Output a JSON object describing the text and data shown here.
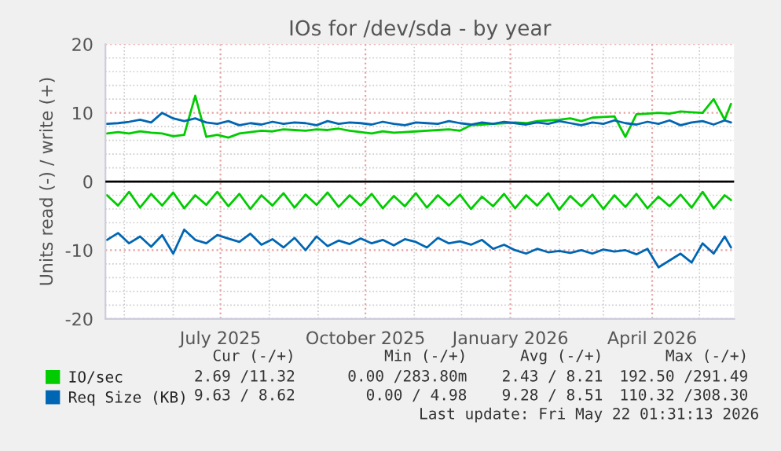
{
  "chart_data": {
    "type": "line",
    "title": "IOs for /dev/sda - by year",
    "ylabel": "Units read (-) / write (+)",
    "x": [
      "2025-04-20",
      "2025-04-27",
      "2025-05-04",
      "2025-05-11",
      "2025-05-18",
      "2025-05-25",
      "2025-06-01",
      "2025-06-08",
      "2025-06-15",
      "2025-06-22",
      "2025-06-29",
      "2025-07-06",
      "2025-07-13",
      "2025-07-20",
      "2025-07-27",
      "2025-08-03",
      "2025-08-10",
      "2025-08-17",
      "2025-08-24",
      "2025-08-31",
      "2025-09-07",
      "2025-09-14",
      "2025-09-21",
      "2025-09-28",
      "2025-10-05",
      "2025-10-12",
      "2025-10-19",
      "2025-10-26",
      "2025-11-02",
      "2025-11-09",
      "2025-11-16",
      "2025-11-23",
      "2025-11-30",
      "2025-12-07",
      "2025-12-14",
      "2025-12-21",
      "2025-12-28",
      "2026-01-04",
      "2026-01-11",
      "2026-01-18",
      "2026-01-25",
      "2026-02-01",
      "2026-02-08",
      "2026-02-15",
      "2026-02-22",
      "2026-03-01",
      "2026-03-08",
      "2026-03-15",
      "2026-03-22",
      "2026-03-29",
      "2026-04-05",
      "2026-04-12",
      "2026-04-19",
      "2026-04-26",
      "2026-05-03",
      "2026-05-10",
      "2026-05-17",
      "2026-05-21"
    ],
    "series": [
      {
        "name": "IO/sec",
        "color": "#00cc00",
        "values": [
          7.0,
          7.2,
          7.0,
          7.3,
          7.1,
          7.0,
          6.6,
          6.8,
          12.5,
          6.5,
          6.8,
          6.4,
          7.0,
          7.2,
          7.4,
          7.3,
          7.6,
          7.5,
          7.4,
          7.6,
          7.5,
          7.7,
          7.4,
          7.2,
          7.0,
          7.3,
          7.1,
          7.2,
          7.3,
          7.4,
          7.5,
          7.6,
          7.4,
          8.2,
          8.3,
          8.4,
          8.5,
          8.6,
          8.5,
          8.8,
          8.9,
          9.0,
          9.2,
          8.8,
          9.3,
          9.4,
          9.5,
          6.5,
          9.8,
          9.9,
          10.0,
          9.9,
          10.2,
          10.1,
          10.0,
          12.0,
          9.0,
          11.3
        ]
      },
      {
        "color": "#00cc00",
        "values": [
          -2.0,
          -3.5,
          -1.5,
          -3.8,
          -1.8,
          -3.5,
          -1.6,
          -3.9,
          -2.0,
          -3.4,
          -1.5,
          -3.6,
          -1.8,
          -4.0,
          -2.0,
          -3.5,
          -1.7,
          -3.8,
          -1.9,
          -3.4,
          -1.6,
          -3.7,
          -2.0,
          -3.5,
          -1.8,
          -3.9,
          -2.1,
          -3.6,
          -1.7,
          -3.8,
          -2.0,
          -3.5,
          -1.9,
          -4.0,
          -2.2,
          -3.6,
          -1.8,
          -3.9,
          -2.0,
          -3.5,
          -1.7,
          -4.1,
          -2.1,
          -3.6,
          -1.9,
          -4.0,
          -2.0,
          -3.7,
          -1.8,
          -3.9,
          -2.2,
          -3.6,
          -1.9,
          -3.8,
          -1.5,
          -3.9,
          -2.0,
          -2.7
        ]
      },
      {
        "name": "Req Size (KB)",
        "color": "#0066b3",
        "values": [
          8.4,
          8.5,
          8.7,
          9.0,
          8.6,
          10.0,
          9.2,
          8.8,
          9.2,
          8.6,
          8.4,
          8.8,
          8.2,
          8.5,
          8.3,
          8.7,
          8.4,
          8.6,
          8.5,
          8.2,
          8.8,
          8.4,
          8.6,
          8.5,
          8.3,
          8.7,
          8.4,
          8.2,
          8.6,
          8.5,
          8.4,
          8.8,
          8.5,
          8.3,
          8.6,
          8.4,
          8.7,
          8.5,
          8.3,
          8.6,
          8.4,
          8.8,
          8.5,
          8.2,
          8.6,
          8.4,
          8.9,
          8.5,
          8.3,
          8.7,
          8.4,
          8.9,
          8.2,
          8.6,
          8.8,
          8.3,
          8.9,
          8.6
        ]
      },
      {
        "color": "#0066b3",
        "values": [
          -8.5,
          -7.5,
          -9.0,
          -8.0,
          -9.5,
          -7.8,
          -10.5,
          -7.0,
          -8.5,
          -9.0,
          -7.8,
          -8.3,
          -8.8,
          -7.6,
          -9.2,
          -8.4,
          -9.6,
          -8.2,
          -10.0,
          -8.0,
          -9.4,
          -8.6,
          -9.1,
          -8.3,
          -9.0,
          -8.5,
          -9.3,
          -8.4,
          -8.8,
          -9.6,
          -8.2,
          -9.0,
          -8.7,
          -9.2,
          -8.5,
          -9.8,
          -9.2,
          -10.0,
          -10.5,
          -9.8,
          -10.3,
          -10.1,
          -10.4,
          -10.0,
          -10.5,
          -9.9,
          -10.2,
          -10.0,
          -10.6,
          -9.8,
          -12.5,
          -11.5,
          -10.5,
          -11.8,
          -9.0,
          -10.5,
          -8.0,
          -9.6
        ]
      }
    ],
    "xlim": [
      "2025-04-19",
      "2026-05-23"
    ],
    "xticks": [
      {
        "value": "2025-07-01",
        "label": "July 2025"
      },
      {
        "value": "2025-10-01",
        "label": "October 2025"
      },
      {
        "value": "2026-01-01",
        "label": "January 2026"
      },
      {
        "value": "2026-04-01",
        "label": "April 2026"
      }
    ],
    "ylim": [
      -20,
      20
    ],
    "yticks": [
      -20,
      -10,
      0,
      10,
      20
    ],
    "ref_lines": [
      {
        "axis": "y",
        "value": 0,
        "color": "#000000"
      }
    ],
    "grid": true,
    "legend": "bottom",
    "line_style": "solid",
    "marker": "none",
    "annotations": [
      "Cur (-/+)",
      "Min (-/+)",
      "Avg (-/+)",
      "Max (-/+)",
      "2.69 /11.32",
      "0.00 /283.80m",
      "2.43 / 8.21",
      "192.50 /291.49",
      "9.63 / 8.62",
      "0.00 / 4.98",
      "9.28 / 8.51",
      "110.32 /308.30",
      "Last update: Fri May 22 01:31:13 2026"
    ]
  }
}
